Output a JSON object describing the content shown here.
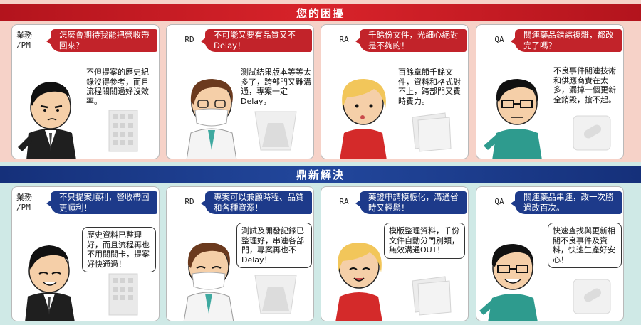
{
  "header_top": "您的困擾",
  "header_bottom": "鼎新解決",
  "problems": [
    {
      "role": "業務\n/PM",
      "title": "怎麼會期待我能把營收帶回來？",
      "speech": "不但提案的歷史紀錄沒得參考，而且流程關關過好沒效率。"
    },
    {
      "role": "RD",
      "title": "不可能又要有品質又不Delay！",
      "speech": "測試結果版本等等太多了，跨部門又難溝通，專案一定Delay。"
    },
    {
      "role": "RA",
      "title": "千餘份文件，光細心絕對是不夠的！",
      "speech": "百餘章節千餘文件，資料和格式對不上，跨部門又費時費力。"
    },
    {
      "role": "QA",
      "title": "關連藥品錯綜複雜，都改完了嗎？",
      "speech": "不良事件關連技術和供應商實在太多，漏掉一個更新全銷毀，搶不起。"
    }
  ],
  "solutions": [
    {
      "role": "業務\n/PM",
      "title": "不只提案順利，營收帶回更順利！",
      "speech": "歷史資料已整理好，而且流程再也不用關關卡，提案好快通過！"
    },
    {
      "role": "RD",
      "title": "專案可以兼顧時程、品質和各種資源！",
      "speech": "測試及開發記錄已整理好，串連各部門，專案再也不Delay！"
    },
    {
      "role": "RA",
      "title": "藥證申請模板化，溝通省時又輕鬆！",
      "speech": "模版整理資料，千份文件自動分門別類，無效溝通OUT！"
    },
    {
      "role": "QA",
      "title": "關連藥品串連，改一次勝過改百次。",
      "speech": "快速查找與更新相關不良事件及資料，快速生產好安心！"
    }
  ],
  "colors": {
    "problem_accent": "#c2232a",
    "solution_accent": "#1d3a8a",
    "problem_bg": "#f6d2c8",
    "solution_bg": "#cfe9e6"
  },
  "icons": [
    "building-icon",
    "flask-icon",
    "documents-icon",
    "pill-icon"
  ]
}
